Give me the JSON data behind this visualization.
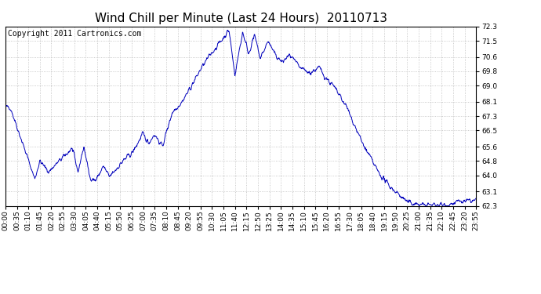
{
  "title": "Wind Chill per Minute (Last 24 Hours)  20110713",
  "copyright": "Copyright 2011 Cartronics.com",
  "line_color": "#0000bb",
  "background_color": "#ffffff",
  "grid_color": "#bbbbbb",
  "ylim": [
    62.3,
    72.3
  ],
  "yticks": [
    62.3,
    63.1,
    64.0,
    64.8,
    65.6,
    66.5,
    67.3,
    68.1,
    69.0,
    69.8,
    70.6,
    71.5,
    72.3
  ],
  "xtick_labels": [
    "00:00",
    "00:35",
    "01:10",
    "01:45",
    "02:20",
    "02:55",
    "03:30",
    "04:05",
    "04:40",
    "05:15",
    "05:50",
    "06:25",
    "07:00",
    "07:35",
    "08:10",
    "08:45",
    "09:20",
    "09:55",
    "10:30",
    "11:05",
    "11:40",
    "12:15",
    "12:50",
    "13:25",
    "14:00",
    "14:35",
    "15:10",
    "15:45",
    "16:20",
    "16:55",
    "17:30",
    "18:05",
    "18:40",
    "19:15",
    "19:50",
    "20:25",
    "21:00",
    "21:35",
    "22:10",
    "22:45",
    "23:20",
    "23:55"
  ],
  "title_fontsize": 11,
  "copyright_fontsize": 7,
  "tick_fontsize": 6.5,
  "fig_width": 6.9,
  "fig_height": 3.75,
  "dpi": 100
}
